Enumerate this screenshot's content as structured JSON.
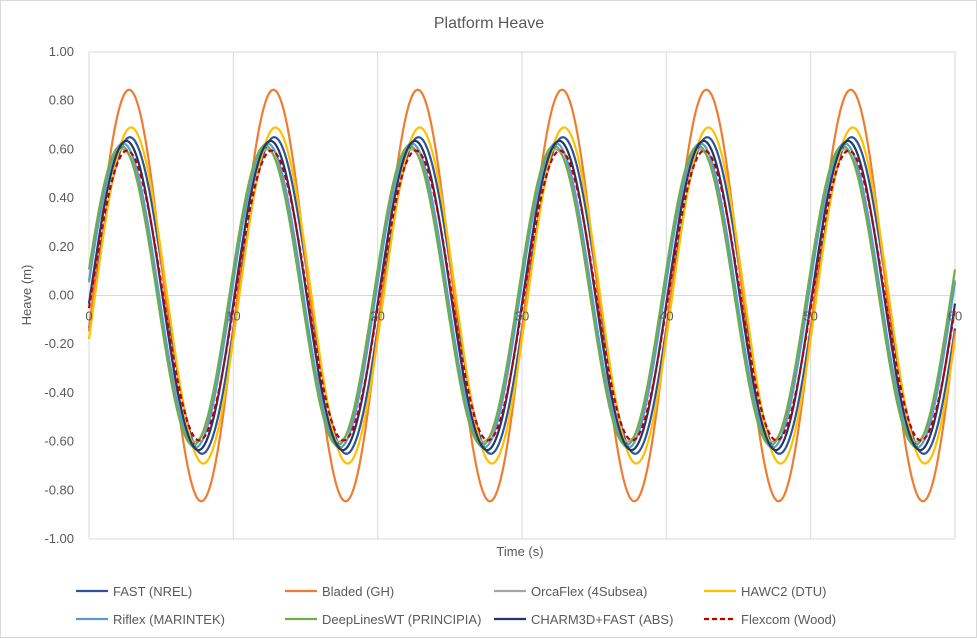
{
  "chart_data": {
    "type": "line",
    "title": "Platform Heave",
    "xlabel": "Time (s)",
    "ylabel": "Heave (m)",
    "xlim": [
      0,
      60
    ],
    "ylim": [
      -1.0,
      1.0
    ],
    "x_ticks": [
      0,
      10,
      20,
      30,
      40,
      50,
      60
    ],
    "x_tick_labels": [
      "0",
      "10",
      "20",
      "30",
      "40",
      "50",
      "60"
    ],
    "y_ticks": [
      -1.0,
      -0.8,
      -0.6,
      -0.4,
      -0.2,
      0.0,
      0.2,
      0.4,
      0.6,
      0.8,
      1.0
    ],
    "y_tick_labels": [
      "-1.00",
      "-0.80",
      "-0.60",
      "-0.40",
      "-0.20",
      "0.00",
      "0.20",
      "0.40",
      "0.60",
      "0.80",
      "1.00"
    ],
    "grid": "vertical",
    "legend_position": "bottom",
    "wave_period_s": 10,
    "series": [
      {
        "name": "FAST (NREL)",
        "color": "#2F5597",
        "dash": "solid",
        "amplitude": 0.65,
        "phase_deg": -12,
        "x": [
          0,
          5,
          10,
          15,
          20,
          25,
          30,
          35,
          40,
          45,
          50,
          55,
          60
        ],
        "peaks": [
          0.65,
          0.65,
          0.65,
          0.65,
          0.65,
          0.65
        ],
        "troughs": [
          -0.64,
          -0.64,
          -0.64,
          -0.64,
          -0.64,
          -0.64
        ]
      },
      {
        "name": "Bladed (GH)",
        "color": "#ED7D31",
        "dash": "solid",
        "amplitude": 0.845,
        "phase_deg": -10,
        "peaks": [
          0.84,
          0.84,
          0.84,
          0.84,
          0.84,
          0.84
        ],
        "troughs": [
          -0.86,
          -0.86,
          -0.86,
          -0.86,
          -0.86,
          -0.86
        ]
      },
      {
        "name": "OrcaFlex (4Subsea)",
        "color": "#A5A5A5",
        "dash": "solid",
        "amplitude": 0.6,
        "phase_deg": 6,
        "peaks": [
          0.6,
          0.6,
          0.6,
          0.6,
          0.6,
          0.6
        ],
        "troughs": [
          -0.6,
          -0.6,
          -0.6,
          -0.6,
          -0.6,
          -0.6
        ]
      },
      {
        "name": "HAWC2 (DTU)",
        "color": "#FFC000",
        "dash": "solid",
        "amplitude": 0.69,
        "phase_deg": -15,
        "peaks": [
          0.7,
          0.7,
          0.7,
          0.7,
          0.7,
          0.7
        ],
        "troughs": [
          -0.68,
          -0.68,
          -0.68,
          -0.68,
          -0.68,
          -0.68
        ]
      },
      {
        "name": "Riflex (MARINTEK)",
        "color": "#5B9BD5",
        "dash": "solid",
        "amplitude": 0.625,
        "phase_deg": 5,
        "peaks": [
          0.62,
          0.62,
          0.62,
          0.62,
          0.62,
          0.62
        ],
        "troughs": [
          -0.63,
          -0.63,
          -0.63,
          -0.63,
          -0.63,
          -0.63
        ]
      },
      {
        "name": "DeepLinesWT (PRINCIPIA)",
        "color": "#70AD47",
        "dash": "solid",
        "amplitude": 0.615,
        "phase_deg": 10,
        "peaks": [
          0.64,
          0.64,
          0.64,
          0.64,
          0.64,
          0.64
        ],
        "troughs": [
          -0.59,
          -0.59,
          -0.59,
          -0.59,
          -0.59,
          -0.59
        ]
      },
      {
        "name": "CHARM3D+FAST (ABS)",
        "color": "#1F3864",
        "dash": "solid",
        "amplitude": 0.635,
        "phase_deg": -3,
        "peaks": [
          0.67,
          0.67,
          0.67,
          0.67,
          0.67,
          0.67
        ],
        "troughs": [
          -0.6,
          -0.6,
          -0.6,
          -0.6,
          -0.6,
          -0.6
        ]
      },
      {
        "name": "Flexcom (Wood)",
        "color": "#C00000",
        "dash": "dashed",
        "amplitude": 0.595,
        "phase_deg": -5,
        "peaks": [
          0.59,
          0.59,
          0.59,
          0.59,
          0.59,
          0.59
        ],
        "troughs": [
          -0.6,
          -0.6,
          -0.6,
          -0.6,
          -0.6,
          -0.6
        ]
      }
    ]
  }
}
